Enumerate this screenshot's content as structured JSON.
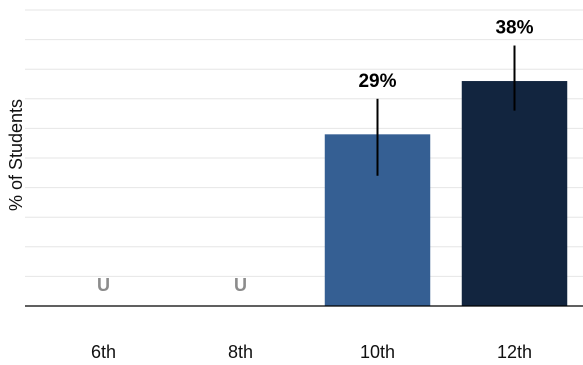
{
  "chart_data": {
    "type": "bar",
    "ylabel": "% of Students",
    "categories": [
      "6th",
      "8th",
      "10th",
      "12th"
    ],
    "values": [
      null,
      null,
      29,
      38
    ],
    "value_labels": [
      "U",
      "U",
      "29%",
      "38%"
    ],
    "error_bars": [
      null,
      null,
      [
        22,
        35
      ],
      [
        33,
        44
      ]
    ],
    "colors": [
      "#355f93",
      "#355f93",
      "#355f93",
      "#12253f"
    ],
    "ylim": [
      0,
      50
    ],
    "grid": true,
    "legend": "none"
  }
}
